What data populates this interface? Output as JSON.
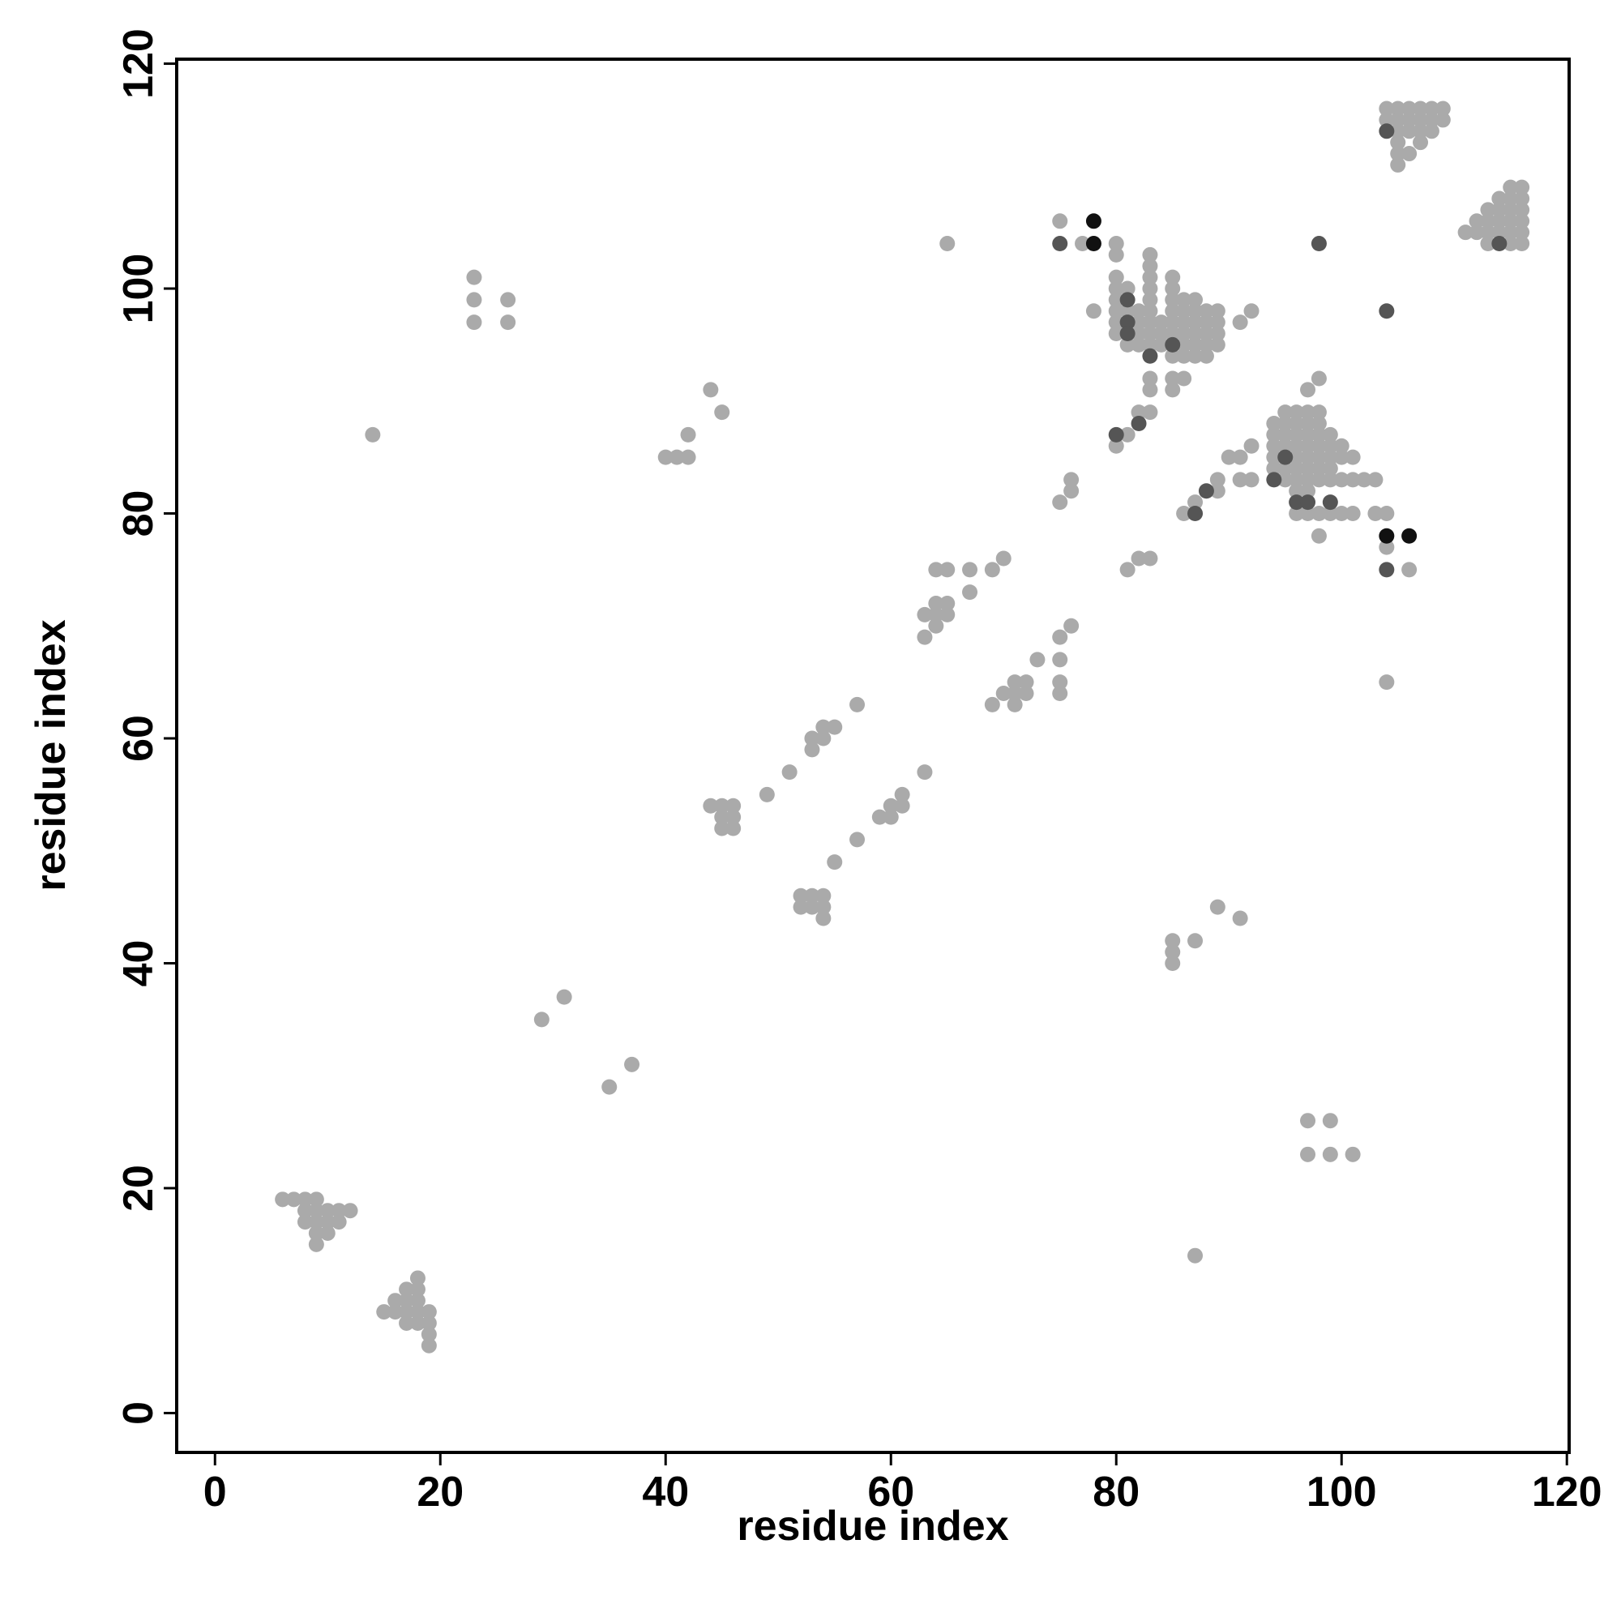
{
  "chart_data": {
    "type": "scatter",
    "x_label": "residue index",
    "y_label": "residue index",
    "xlim": [
      -3.4,
      120.2
    ],
    "ylim": [
      -3.5,
      120.4
    ],
    "xticks": [
      0,
      20,
      40,
      60,
      80,
      100,
      120
    ],
    "yticks": [
      0,
      20,
      40,
      60,
      80,
      100,
      120
    ],
    "series": [
      {
        "color": "#aaaaaa",
        "x": [
          6,
          7,
          8,
          9,
          8,
          9,
          10,
          11,
          12,
          8,
          9,
          10,
          11,
          9,
          10,
          9,
          15,
          16,
          16,
          17,
          17,
          17,
          18,
          18,
          17,
          18,
          18,
          18,
          19,
          19,
          19,
          19,
          14,
          23,
          23,
          23,
          26,
          26,
          29,
          31,
          35,
          37,
          40,
          41,
          42,
          42,
          44,
          45,
          44,
          45,
          46,
          45,
          46,
          45,
          46,
          49,
          51,
          53,
          53,
          54,
          54,
          55,
          57,
          52,
          53,
          54,
          52,
          53,
          54,
          54,
          55,
          57,
          59,
          60,
          60,
          61,
          61,
          63,
          63,
          63,
          64,
          64,
          64,
          65,
          65,
          64,
          65,
          67,
          67,
          69,
          70,
          65,
          69,
          70,
          71,
          71,
          71,
          72,
          72,
          73,
          75,
          75,
          75,
          75,
          76,
          75,
          76,
          76,
          75,
          77,
          78,
          80,
          81,
          81,
          82,
          83,
          82,
          83,
          80,
          80,
          80,
          80,
          80,
          80,
          80,
          80,
          81,
          81,
          81,
          82,
          82,
          82,
          82,
          83,
          83,
          83,
          83,
          83,
          83,
          83,
          83,
          83,
          83,
          83,
          84,
          84,
          84,
          85,
          85,
          85,
          85,
          85,
          85,
          85,
          85,
          85,
          86,
          86,
          86,
          86,
          86,
          86,
          86,
          87,
          87,
          87,
          87,
          87,
          87,
          88,
          88,
          88,
          88,
          88,
          89,
          89,
          89,
          89,
          91,
          92,
          86,
          87,
          89,
          89,
          90,
          91,
          91,
          92,
          92,
          85,
          85,
          85,
          87,
          89,
          91,
          87,
          97,
          99,
          101,
          97,
          99,
          94,
          94,
          94,
          94,
          94,
          95,
          95,
          95,
          95,
          95,
          95,
          96,
          96,
          96,
          96,
          96,
          96,
          96,
          96,
          97,
          97,
          97,
          97,
          97,
          97,
          97,
          97,
          98,
          98,
          98,
          98,
          98,
          98,
          98,
          99,
          99,
          99,
          99,
          99,
          100,
          100,
          100,
          101,
          101,
          102,
          103,
          96,
          97,
          98,
          99,
          100,
          101,
          98,
          97,
          98,
          103,
          104,
          104,
          106,
          104,
          104,
          105,
          106,
          107,
          108,
          109,
          104,
          105,
          106,
          107,
          108,
          109,
          105,
          106,
          107,
          108,
          105,
          107,
          105,
          105,
          106,
          111,
          112,
          113,
          114,
          115,
          116,
          112,
          113,
          114,
          115,
          116,
          113,
          114,
          115,
          116,
          114,
          115,
          116,
          115,
          116,
          113,
          115,
          116
        ],
        "values": [
          19,
          19,
          19,
          19,
          18,
          18,
          18,
          18,
          18,
          17,
          17,
          17,
          17,
          16,
          16,
          15,
          9,
          9,
          10,
          9,
          10,
          11,
          11,
          12,
          8,
          8,
          9,
          10,
          9,
          8,
          7,
          6,
          87,
          101,
          99,
          97,
          99,
          97,
          35,
          37,
          29,
          31,
          85,
          85,
          85,
          87,
          91,
          89,
          54,
          54,
          54,
          53,
          53,
          52,
          52,
          55,
          57,
          59,
          60,
          60,
          61,
          61,
          63,
          46,
          46,
          46,
          45,
          45,
          45,
          44,
          49,
          51,
          53,
          53,
          54,
          54,
          55,
          57,
          69,
          71,
          70,
          71,
          72,
          71,
          72,
          75,
          75,
          75,
          73,
          75,
          76,
          104,
          63,
          64,
          63,
          64,
          65,
          64,
          65,
          67,
          64,
          65,
          67,
          69,
          70,
          81,
          82,
          83,
          106,
          104,
          98,
          86,
          87,
          75,
          76,
          76,
          89,
          89,
          96,
          97,
          98,
          99,
          100,
          101,
          103,
          104,
          95,
          98,
          100,
          95,
          96,
          97,
          98,
          95,
          96,
          97,
          98,
          99,
          100,
          101,
          102,
          103,
          91,
          92,
          95,
          96,
          97,
          94,
          96,
          97,
          98,
          99,
          100,
          101,
          91,
          92,
          94,
          95,
          96,
          97,
          98,
          99,
          92,
          94,
          95,
          96,
          97,
          98,
          99,
          94,
          95,
          96,
          97,
          98,
          95,
          96,
          97,
          98,
          97,
          98,
          80,
          81,
          82,
          83,
          85,
          83,
          85,
          83,
          86,
          40,
          41,
          42,
          42,
          45,
          44,
          14,
          23,
          23,
          23,
          26,
          26,
          84,
          85,
          86,
          87,
          88,
          83,
          84,
          86,
          87,
          88,
          89,
          82,
          83,
          84,
          85,
          86,
          87,
          88,
          89,
          82,
          83,
          84,
          85,
          86,
          87,
          88,
          89,
          83,
          84,
          85,
          86,
          87,
          88,
          89,
          83,
          84,
          85,
          86,
          87,
          83,
          85,
          86,
          83,
          85,
          83,
          83,
          80,
          80,
          80,
          80,
          80,
          80,
          78,
          91,
          92,
          80,
          80,
          77,
          75,
          65,
          116,
          116,
          116,
          116,
          116,
          116,
          115,
          115,
          115,
          115,
          115,
          115,
          114,
          114,
          114,
          114,
          113,
          113,
          111,
          112,
          112,
          105,
          105,
          105,
          105,
          105,
          105,
          106,
          106,
          106,
          106,
          106,
          107,
          107,
          107,
          107,
          108,
          108,
          108,
          109,
          109,
          104,
          104,
          104
        ]
      },
      {
        "color": "#555555",
        "x": [
          75,
          80,
          82,
          81,
          81,
          81,
          83,
          85,
          87,
          88,
          94,
          95,
          96,
          97,
          99,
          104,
          98,
          104,
          104,
          114
        ],
        "values": [
          104,
          87,
          88,
          99,
          97,
          96,
          94,
          95,
          80,
          82,
          83,
          85,
          81,
          81,
          81,
          75,
          104,
          98,
          114,
          104
        ]
      },
      {
        "color": "#111111",
        "x": [
          78,
          78,
          104,
          106
        ],
        "values": [
          104,
          106,
          78,
          78
        ]
      }
    ]
  }
}
